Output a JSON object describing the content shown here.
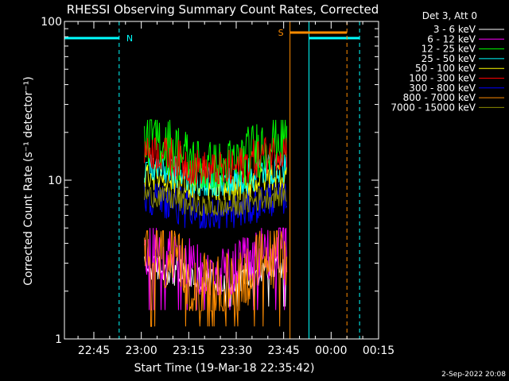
{
  "chart_data": {
    "type": "line",
    "title": "RHESSI Observing Summary Count Rates, Corrected",
    "xlabel": "Start Time (19-Mar-18 22:35:42)",
    "ylabel": "Corrected Count Rate (s⁻¹ detector⁻¹)",
    "y_scale": "log",
    "ylim": [
      1,
      100
    ],
    "xlim": [
      "22:35:42",
      "00:15"
    ],
    "x_ticks": [
      "22:45",
      "23:00",
      "23:15",
      "23:30",
      "23:45",
      "00:00",
      "00:15"
    ],
    "y_ticks": [
      "1",
      "10",
      "100"
    ],
    "legend_title": "Det 3, Att 0",
    "legend_position": "right",
    "series": [
      {
        "name": "3 - 6 keV",
        "color": "#ffffff",
        "range": [
          2.0,
          3.3
        ]
      },
      {
        "name": "6 - 12 keV",
        "color": "#ff00ff",
        "range": [
          1.9,
          5.0
        ]
      },
      {
        "name": "12 - 25 keV",
        "color": "#00ff00",
        "range": [
          9.0,
          24.0
        ]
      },
      {
        "name": "25 - 50 keV",
        "color": "#00ffff",
        "range": [
          8.0,
          14.5
        ]
      },
      {
        "name": "50 - 100 keV",
        "color": "#ffff00",
        "range": [
          7.5,
          12.5
        ]
      },
      {
        "name": "100 - 300 keV",
        "color": "#ff0000",
        "range": [
          9.5,
          18.5
        ]
      },
      {
        "name": "300 - 800 keV",
        "color": "#0000ff",
        "range": [
          5.0,
          9.5
        ]
      },
      {
        "name": "800 - 7000 keV",
        "color": "#ff8c00",
        "range": [
          1.5,
          4.8
        ]
      },
      {
        "name": "7000 - 15000 keV",
        "color": "#8b8b00",
        "range": [
          6.0,
          9.0
        ]
      }
    ],
    "data_interval": [
      "23:01",
      "23:46"
    ],
    "night_intervals": [
      [
        "22:35:42",
        "22:53"
      ],
      [
        "23:53",
        "00:09"
      ]
    ],
    "saa_interval": [
      "23:47",
      "00:05"
    ],
    "flags": [
      {
        "label": "N",
        "color": "#00ffff"
      },
      {
        "label": "S",
        "color": "#ff8c00"
      }
    ]
  },
  "timestamp": "2-Sep-2022 20:08"
}
